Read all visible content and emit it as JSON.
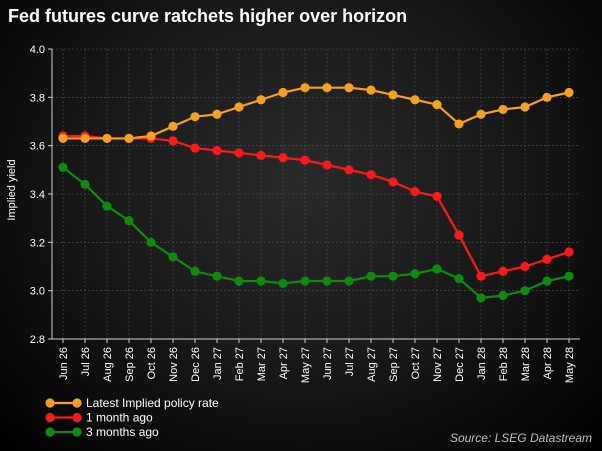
{
  "chart_data": {
    "type": "line",
    "title": "Fed futures curve ratchets higher over horizon",
    "xlabel": "",
    "ylabel": "Implied yield",
    "ylim": [
      2.8,
      4.0
    ],
    "yticks": [
      "2.8",
      "3.0",
      "3.2",
      "3.4",
      "3.6",
      "3.8",
      "4.0"
    ],
    "grid": true,
    "legend_position": "bottom-left",
    "categories": [
      "Jun 26",
      "Jul 26",
      "Aug 26",
      "Sep 26",
      "Oct 26",
      "Nov 26",
      "Dec 26",
      "Jan 27",
      "Feb 27",
      "Mar 27",
      "Apr 27",
      "May 27",
      "Jun 27",
      "Jul 27",
      "Aug 27",
      "Sep 27",
      "Oct 27",
      "Nov 27",
      "Dec 27",
      "Jan 28",
      "Feb 28",
      "Mar 28",
      "Apr 28",
      "May 28"
    ],
    "series": [
      {
        "name": "Latest Implied policy rate",
        "color": "#f5a020",
        "values": [
          3.63,
          3.63,
          3.63,
          3.63,
          3.64,
          3.68,
          3.72,
          3.73,
          3.76,
          3.79,
          3.82,
          3.84,
          3.84,
          3.84,
          3.83,
          3.81,
          3.79,
          3.77,
          3.69,
          3.73,
          3.75,
          3.76,
          3.8,
          3.82
        ]
      },
      {
        "name": "1 month ago",
        "color": "#ff1a1a",
        "values": [
          3.64,
          3.64,
          3.63,
          3.63,
          3.63,
          3.62,
          3.59,
          3.58,
          3.57,
          3.56,
          3.55,
          3.54,
          3.52,
          3.5,
          3.48,
          3.45,
          3.41,
          3.39,
          3.23,
          3.06,
          3.08,
          3.1,
          3.13,
          3.16
        ]
      },
      {
        "name": "3 months ago",
        "color": "#0f8a0f",
        "values": [
          3.51,
          3.44,
          3.35,
          3.29,
          3.2,
          3.14,
          3.08,
          3.06,
          3.04,
          3.04,
          3.03,
          3.04,
          3.04,
          3.04,
          3.06,
          3.06,
          3.07,
          3.09,
          3.05,
          2.97,
          2.98,
          3.0,
          3.04,
          3.06
        ]
      }
    ],
    "source": "Source: LSEG Datastream"
  }
}
